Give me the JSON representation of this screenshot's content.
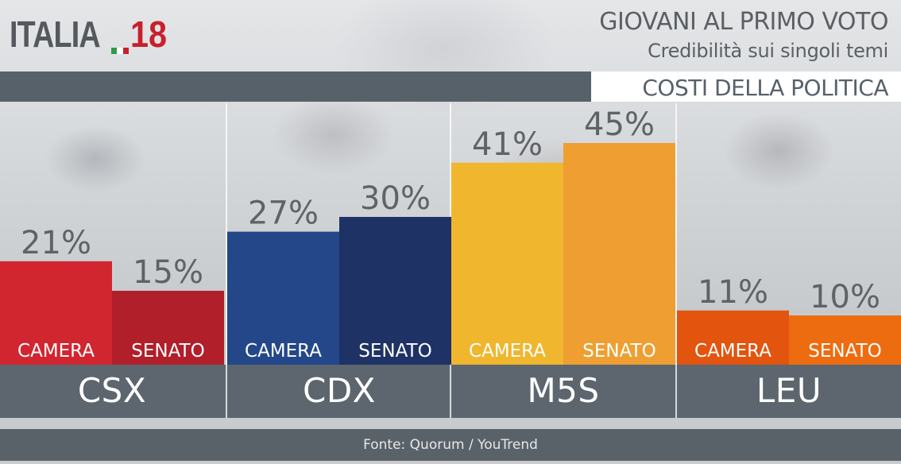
{
  "logo": {
    "text": "ITALIA",
    "number": "18",
    "flag_colors": [
      "#2e9b46",
      "#ffffff",
      "#c8202c"
    ]
  },
  "header": {
    "title": "GIOVANI AL PRIMO VOTO",
    "subtitle": "Credibilità sui singoli temi",
    "topic": "COSTI DELLA POLITICA"
  },
  "source": "Fonte: Quorum / YouTrend",
  "chart_data": {
    "type": "bar",
    "title": "GIOVANI AL PRIMO VOTO",
    "subtitle": "Credibilità sui singoli temi",
    "topic": "COSTI DELLA POLITICA",
    "unit": "%",
    "ylim": [
      0,
      50
    ],
    "grid": false,
    "categories": [
      "CSX",
      "CDX",
      "M5S",
      "LEU"
    ],
    "series": [
      {
        "name": "CAMERA",
        "values": [
          21,
          27,
          41,
          11
        ]
      },
      {
        "name": "SENATO",
        "values": [
          15,
          30,
          45,
          10
        ]
      }
    ],
    "colors": {
      "CSX": [
        "#d12630",
        "#b01f2a"
      ],
      "CDX": [
        "#24478a",
        "#1e3266"
      ],
      "M5S": [
        "#f0b62e",
        "#ef9f32"
      ],
      "LEU": [
        "#e3540f",
        "#ee6c10"
      ]
    }
  }
}
